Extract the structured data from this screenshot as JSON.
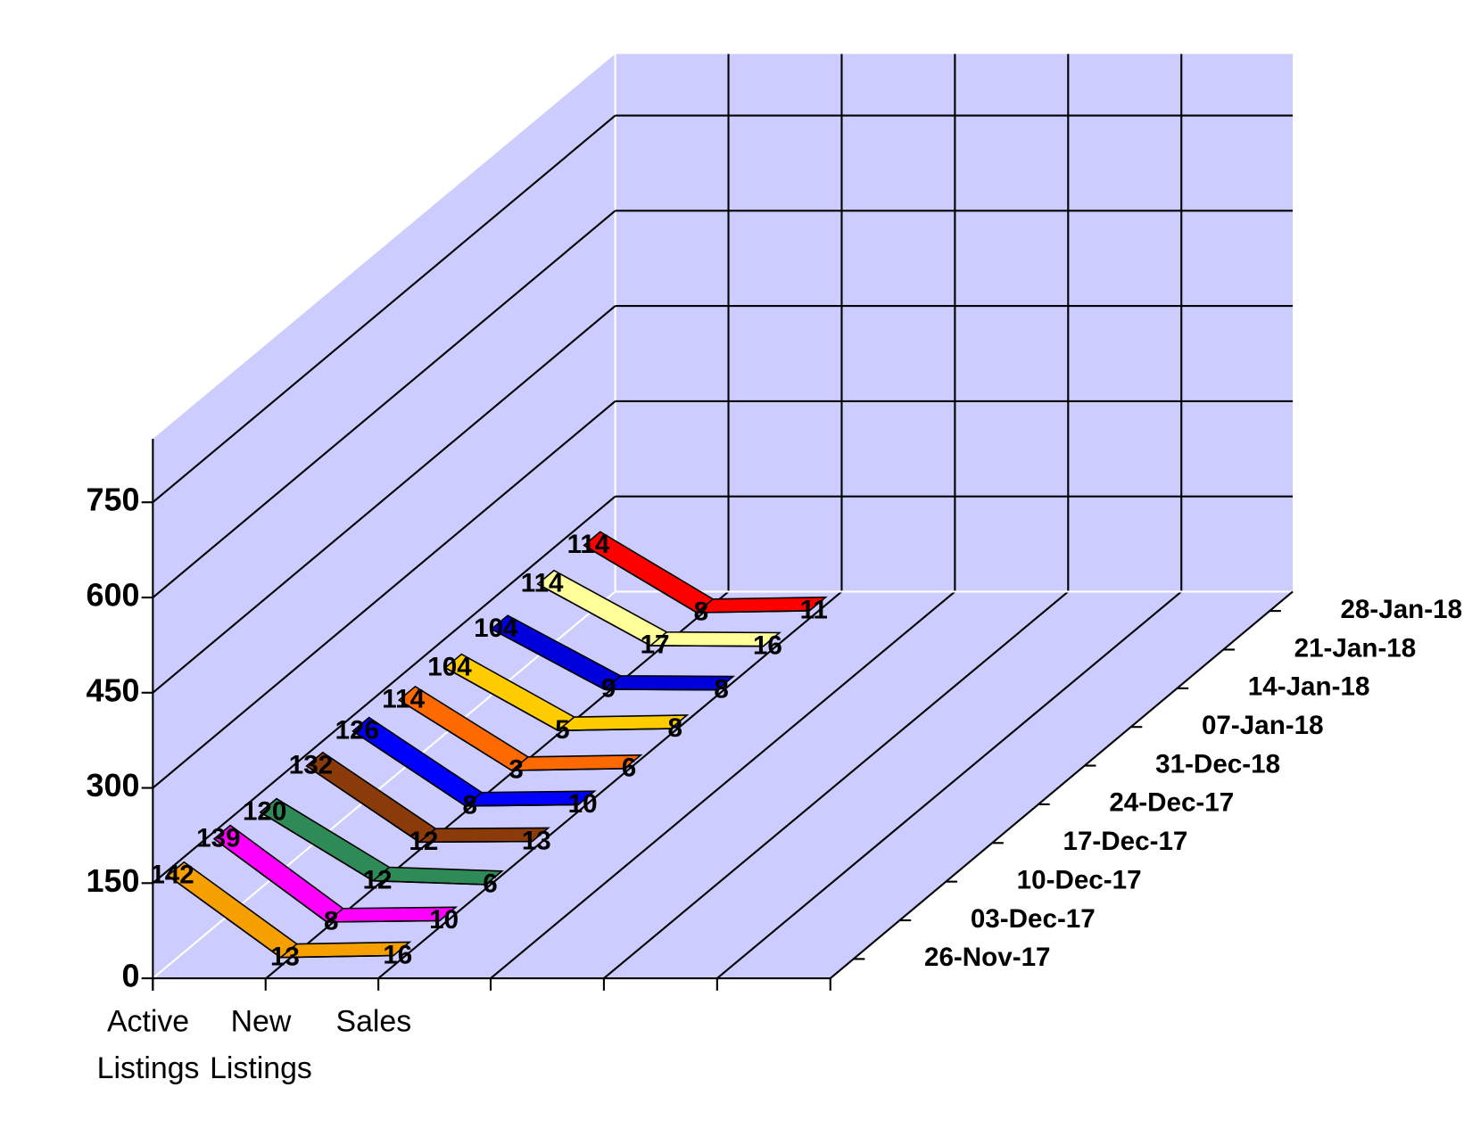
{
  "chart_data": {
    "type": "line3d",
    "categories": [
      "Active Listings",
      "New Listings",
      "Sales"
    ],
    "series": [
      {
        "name": "26-Nov-17",
        "color": "#f5a000",
        "values": [
          142,
          13,
          16
        ]
      },
      {
        "name": "03-Dec-17",
        "color": "#ff00ff",
        "values": [
          139,
          8,
          10
        ]
      },
      {
        "name": "10-Dec-17",
        "color": "#2e8b57",
        "values": [
          120,
          12,
          6
        ]
      },
      {
        "name": "17-Dec-17",
        "color": "#8b3a0a",
        "values": [
          132,
          12,
          13
        ]
      },
      {
        "name": "24-Dec-17",
        "color": "#0000ff",
        "values": [
          126,
          8,
          10
        ]
      },
      {
        "name": "31-Dec-18",
        "color": "#ff6a00",
        "values": [
          114,
          3,
          6
        ]
      },
      {
        "name": "07-Jan-18",
        "color": "#ffcc00",
        "values": [
          104,
          5,
          8
        ]
      },
      {
        "name": "14-Jan-18",
        "color": "#0000dd",
        "values": [
          104,
          9,
          8
        ]
      },
      {
        "name": "21-Jan-18",
        "color": "#ffff99",
        "values": [
          114,
          17,
          16
        ]
      },
      {
        "name": "28-Jan-18",
        "color": "#ff0000",
        "values": [
          114,
          8,
          11
        ]
      }
    ],
    "ylim": [
      0,
      850
    ],
    "yticks": [
      0,
      150,
      300,
      450,
      600,
      750
    ],
    "grid": true
  }
}
